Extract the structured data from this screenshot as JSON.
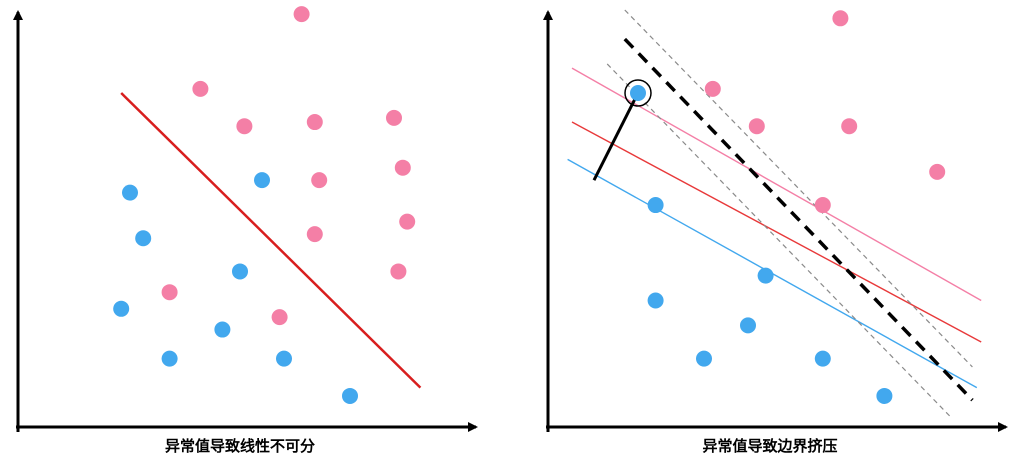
{
  "colors": {
    "positive": "#f47fa6",
    "negative": "#42a8ee",
    "separator_left": "#d81e1e",
    "margin_positive": "#f47fa6",
    "margin_negative": "#42a8ee",
    "separator_right": "#e8393a",
    "dashed_boundary": "#000000",
    "dashed_margin": "#8a8a8a",
    "axis": "#000000"
  },
  "chart_data": [
    {
      "type": "scatter",
      "title": "异常值导致线性不可分",
      "xlim": [
        0,
        100
      ],
      "ylim": [
        0,
        100
      ],
      "series": [
        {
          "class": "positive",
          "points": [
            [
              64,
              99
            ],
            [
              41,
              81
            ],
            [
              51,
              72
            ],
            [
              67,
              73
            ],
            [
              85,
              74
            ],
            [
              87,
              62
            ],
            [
              68,
              59
            ],
            [
              88,
              49
            ],
            [
              67,
              46
            ],
            [
              86,
              37
            ],
            [
              34,
              32
            ],
            [
              59,
              26
            ]
          ]
        },
        {
          "class": "negative",
          "points": [
            [
              25,
              56
            ],
            [
              55,
              59
            ],
            [
              28,
              45
            ],
            [
              50,
              37
            ],
            [
              23,
              28
            ],
            [
              46,
              23
            ],
            [
              34,
              16
            ],
            [
              60,
              16
            ],
            [
              75,
              7
            ]
          ]
        }
      ],
      "lines": [
        {
          "role": "separator",
          "from": [
            23,
            80
          ],
          "to": [
            91,
            9
          ]
        }
      ]
    },
    {
      "type": "scatter",
      "title": "异常值导致边界挤压",
      "xlim": [
        0,
        100
      ],
      "ylim": [
        0,
        100
      ],
      "series": [
        {
          "class": "positive",
          "points": [
            [
              66,
              98
            ],
            [
              37,
              81
            ],
            [
              47,
              72
            ],
            [
              68,
              72
            ],
            [
              88,
              61
            ],
            [
              62,
              53
            ]
          ]
        },
        {
          "class": "negative",
          "points": [
            [
              20,
              80
            ],
            [
              24,
              53
            ],
            [
              49,
              36
            ],
            [
              24,
              30
            ],
            [
              45,
              24
            ],
            [
              35,
              16
            ],
            [
              62,
              16
            ],
            [
              76,
              7
            ]
          ]
        }
      ],
      "outlier": [
        20,
        80
      ],
      "lines": [
        {
          "role": "margin-positive",
          "from": [
            5,
            86
          ],
          "to": [
            98,
            30
          ]
        },
        {
          "role": "separator",
          "from": [
            5,
            73
          ],
          "to": [
            98,
            20
          ]
        },
        {
          "role": "margin-negative",
          "from": [
            4,
            64
          ],
          "to": [
            97,
            9
          ]
        },
        {
          "role": "dashed-boundary",
          "from": [
            17,
            93
          ],
          "to": [
            96,
            6
          ]
        },
        {
          "role": "dashed-margin-upper",
          "from": [
            17,
            100
          ],
          "to": [
            96,
            14
          ]
        },
        {
          "role": "dashed-margin-lower",
          "from": [
            13,
            87
          ],
          "to": [
            91,
            2
          ]
        },
        {
          "role": "outlier-link",
          "from": [
            20,
            80
          ],
          "to": [
            10,
            59
          ]
        }
      ]
    }
  ]
}
